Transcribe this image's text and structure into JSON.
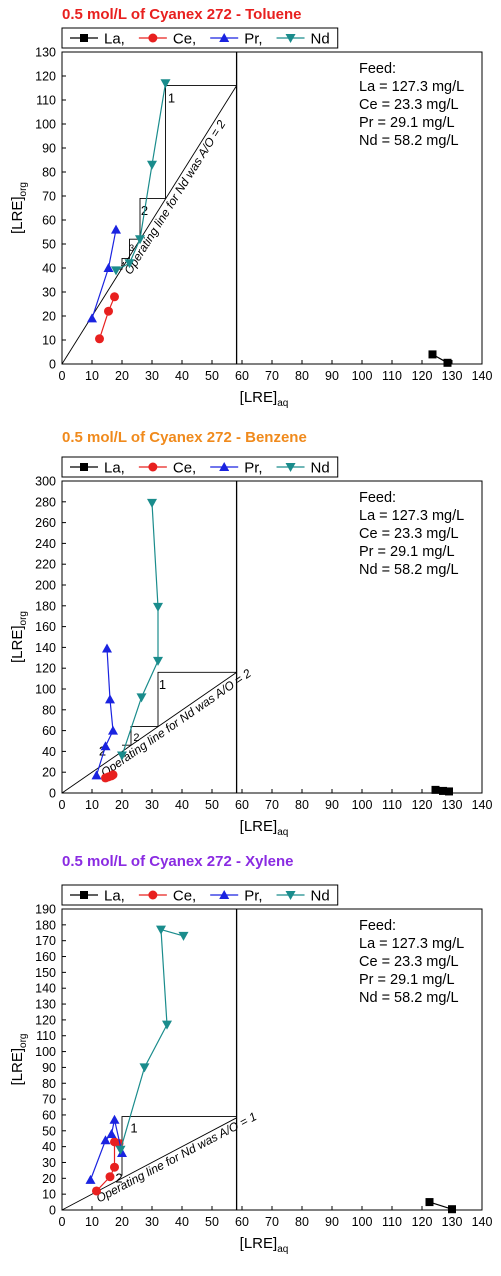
{
  "chart_data": [
    {
      "type": "scatter",
      "title": "0.5 mol/L of Cyanex 272 - Toluene",
      "title_color": "#e8201f",
      "xlabel": "[LRE]",
      "xlabel_sub": "aq",
      "ylabel": "[LRE]",
      "ylabel_sub": "org",
      "xlim": [
        0,
        140
      ],
      "ylim": [
        0,
        130
      ],
      "xticks": [
        0,
        10,
        20,
        30,
        40,
        50,
        60,
        70,
        80,
        90,
        100,
        110,
        120,
        130,
        140
      ],
      "yticks": [
        0,
        10,
        20,
        30,
        40,
        50,
        60,
        70,
        80,
        90,
        100,
        110,
        120,
        130
      ],
      "grid": false,
      "legend_position": "top-left",
      "series": [
        {
          "name": "La,",
          "color": "#000000",
          "marker": "square",
          "x": [
            123.5,
            128.5
          ],
          "y": [
            4,
            0.5
          ]
        },
        {
          "name": "Ce,",
          "color": "#e8201f",
          "marker": "circle",
          "x": [
            12.5,
            15.5,
            17.5
          ],
          "y": [
            10.5,
            22,
            28
          ]
        },
        {
          "name": "Pr,",
          "color": "#1a23e0",
          "marker": "triangle-up",
          "x": [
            10,
            15.5,
            18
          ],
          "y": [
            19,
            40,
            56
          ]
        },
        {
          "name": "Nd",
          "color": "#1a8c8c",
          "marker": "triangle-down",
          "x": [
            18,
            22.5,
            26,
            30,
            34.5
          ],
          "y": [
            39,
            42,
            52,
            83,
            117
          ]
        }
      ],
      "vline_x": 58.2,
      "operating_line": {
        "x": [
          0,
          58.2
        ],
        "y": [
          0,
          116
        ]
      },
      "operating_label": "Operating line for Nd was A/O = 2",
      "stairs": {
        "points": [
          [
            58.2,
            116
          ],
          [
            34.5,
            116
          ],
          [
            34.5,
            69
          ],
          [
            26,
            69
          ],
          [
            26,
            52
          ],
          [
            22.5,
            52
          ],
          [
            22.5,
            44
          ],
          [
            20,
            44
          ],
          [
            20,
            39.5
          ],
          [
            18,
            39.5
          ]
        ],
        "labels": [
          {
            "text": "1",
            "x": 36.5,
            "y": 109,
            "size": 13
          },
          {
            "text": "2",
            "x": 27.5,
            "y": 62,
            "size": 13
          },
          {
            "text": "3",
            "x": 23.2,
            "y": 47,
            "size": 9
          },
          {
            "text": "4",
            "x": 20.3,
            "y": 40.5,
            "size": 7
          }
        ]
      },
      "feed_lines": [
        "Feed:",
        "La = 127.3 mg/L",
        "Ce = 23.3 mg/L",
        "Pr = 29.1 mg/L",
        "Nd = 58.2 mg/L"
      ]
    },
    {
      "type": "scatter",
      "title": "0.5 mol/L of Cyanex 272 - Benzene",
      "title_color": "#f08a1c",
      "xlabel": "[LRE]",
      "xlabel_sub": "aq",
      "ylabel": "[LRE]",
      "ylabel_sub": "org",
      "xlim": [
        0,
        140
      ],
      "ylim": [
        0,
        300
      ],
      "xticks": [
        0,
        10,
        20,
        30,
        40,
        50,
        60,
        70,
        80,
        90,
        100,
        110,
        120,
        130,
        140
      ],
      "yticks": [
        0,
        20,
        40,
        60,
        80,
        100,
        120,
        140,
        160,
        180,
        200,
        220,
        240,
        260,
        280,
        300
      ],
      "grid": false,
      "legend_position": "top-left",
      "series": [
        {
          "name": "La,",
          "color": "#000000",
          "marker": "square",
          "x": [
            124.5,
            127,
            129
          ],
          "y": [
            3,
            2,
            1.5
          ]
        },
        {
          "name": "Ce,",
          "color": "#e8201f",
          "marker": "circle",
          "x": [
            14.5,
            15.5,
            16.5,
            17
          ],
          "y": [
            14.5,
            15.5,
            16.5,
            17.5
          ]
        },
        {
          "name": "Pr,",
          "color": "#1a23e0",
          "marker": "triangle-up",
          "x": [
            11.5,
            14.5,
            17,
            16,
            15
          ],
          "y": [
            17,
            45,
            60,
            90,
            139
          ]
        },
        {
          "name": "Nd",
          "color": "#1a8c8c",
          "marker": "triangle-down",
          "x": [
            20,
            26.5,
            32,
            32,
            30
          ],
          "y": [
            36,
            92,
            127,
            179,
            279
          ]
        }
      ],
      "vline_x": 58.2,
      "operating_line": {
        "x": [
          0,
          58.2
        ],
        "y": [
          0,
          116
        ]
      },
      "operating_label": "Operating line for Nd was A/O = 2",
      "stairs": {
        "points": [
          [
            58.2,
            116
          ],
          [
            32,
            116
          ],
          [
            32,
            64
          ],
          [
            23,
            64
          ],
          [
            23,
            46
          ],
          [
            20,
            46
          ]
        ],
        "labels": [
          {
            "text": "1",
            "x": 33.5,
            "y": 100,
            "size": 13
          },
          {
            "text": "2",
            "x": 24.8,
            "y": 50,
            "size": 11
          },
          {
            "text": "2",
            "x": 13.5,
            "y": 36,
            "size": 13
          }
        ]
      },
      "feed_lines": [
        "Feed:",
        "La = 127.3 mg/L",
        "Ce = 23.3 mg/L",
        "Pr = 29.1 mg/L",
        "Nd = 58.2 mg/L"
      ]
    },
    {
      "type": "scatter",
      "title": "0.5 mol/L of Cyanex 272 - Xylene",
      "title_color": "#8a2be2",
      "xlabel": "[LRE]",
      "xlabel_sub": "aq",
      "ylabel": "[LRE]",
      "ylabel_sub": "org",
      "xlim": [
        0,
        140
      ],
      "ylim": [
        0,
        190
      ],
      "xticks": [
        0,
        10,
        20,
        30,
        40,
        50,
        60,
        70,
        80,
        90,
        100,
        110,
        120,
        130,
        140
      ],
      "yticks": [
        0,
        10,
        20,
        30,
        40,
        50,
        60,
        70,
        80,
        90,
        100,
        110,
        120,
        130,
        140,
        150,
        160,
        170,
        180,
        190
      ],
      "grid": false,
      "legend_position": "top-left",
      "series": [
        {
          "name": "La,",
          "color": "#000000",
          "marker": "square",
          "x": [
            122.5,
            130
          ],
          "y": [
            5,
            0.5
          ]
        },
        {
          "name": "Ce,",
          "color": "#e8201f",
          "marker": "circle",
          "x": [
            11.5,
            16,
            17.5,
            17.5,
            19
          ],
          "y": [
            12,
            21,
            27,
            43,
            42
          ]
        },
        {
          "name": "Pr,",
          "color": "#1a23e0",
          "marker": "triangle-up",
          "x": [
            9.5,
            14.5,
            16.5,
            17.5,
            20
          ],
          "y": [
            19,
            44,
            48,
            57,
            36
          ]
        },
        {
          "name": "Nd",
          "color": "#1a8c8c",
          "marker": "triangle-down",
          "x": [
            19.5,
            27.5,
            35,
            33,
            40.5
          ],
          "y": [
            38,
            90,
            117,
            177,
            173
          ]
        }
      ],
      "vline_x": 58.2,
      "operating_line": {
        "x": [
          0,
          58.2
        ],
        "y": [
          0,
          58.2
        ]
      },
      "operating_label": "Operating line for Nd was A/O = 1",
      "stairs": {
        "points": [
          [
            58.2,
            59
          ],
          [
            20,
            59
          ],
          [
            20,
            22
          ],
          [
            19.5,
            22
          ]
        ],
        "labels": [
          {
            "text": "1",
            "x": 24,
            "y": 49,
            "size": 13
          },
          {
            "text": "2",
            "x": 19,
            "y": 17.5,
            "size": 13
          }
        ]
      },
      "feed_lines": [
        "Feed:",
        "La = 127.3 mg/L",
        "Ce = 23.3 mg/L",
        "Pr = 29.1 mg/L",
        "Nd = 58.2 mg/L"
      ]
    }
  ]
}
